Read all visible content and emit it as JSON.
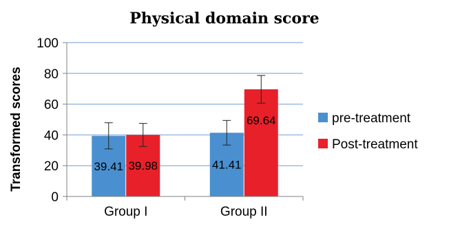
{
  "chart_data": {
    "type": "bar",
    "title": "Physical domain score",
    "xlabel": "",
    "ylabel": "Transformed scores",
    "ylim": [
      0,
      100
    ],
    "yticks": [
      0,
      20,
      40,
      60,
      80,
      100
    ],
    "grid": true,
    "legend_position": "right",
    "categories": [
      "Group I",
      "Group II"
    ],
    "series": [
      {
        "name": "pre-treatment",
        "color": "#4a90d0",
        "values": [
          39.41,
          41.41
        ],
        "labels": [
          "39.41",
          "41.41"
        ],
        "error": [
          8.5,
          8.0
        ]
      },
      {
        "name": "Post-treatment",
        "color": "#e8202a",
        "values": [
          39.98,
          69.64
        ],
        "labels": [
          "39.98",
          "69.64"
        ],
        "error": [
          7.5,
          9.0
        ]
      }
    ]
  }
}
